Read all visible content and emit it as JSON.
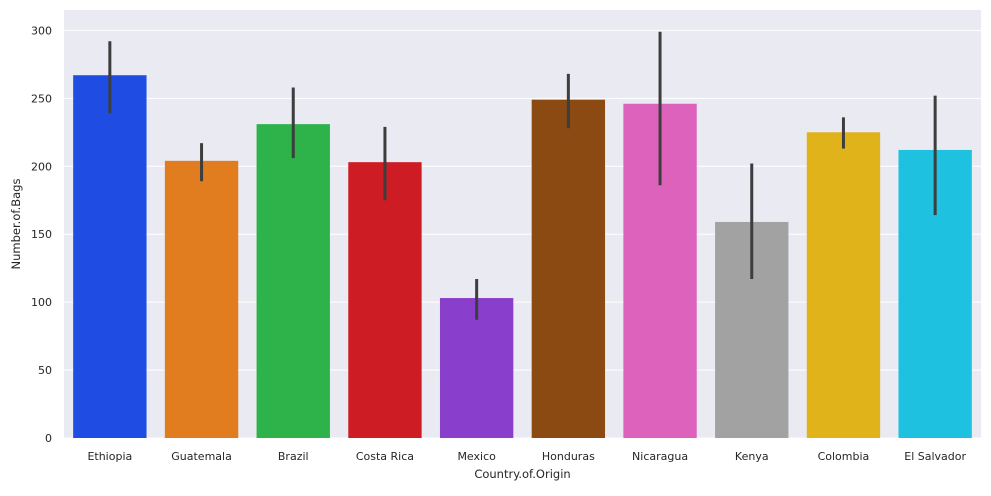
{
  "chart_data": {
    "type": "bar",
    "title": "",
    "xlabel": "Country.of.Origin",
    "ylabel": "Number.of.Bags",
    "categories": [
      "Ethiopia",
      "Guatemala",
      "Brazil",
      "Costa Rica",
      "Mexico",
      "Honduras",
      "Nicaragua",
      "Kenya",
      "Colombia",
      "El Salvador"
    ],
    "values": [
      267,
      204,
      231,
      203,
      103,
      249,
      246,
      159,
      225,
      212
    ],
    "error_bars": [
      [
        239,
        292
      ],
      [
        189,
        217
      ],
      [
        206,
        258
      ],
      [
        175,
        229
      ],
      [
        87,
        117
      ],
      [
        228,
        268
      ],
      [
        186,
        299
      ],
      [
        117,
        202
      ],
      [
        213,
        236
      ],
      [
        164,
        252
      ]
    ],
    "colors": [
      "#1f4de3",
      "#e17c1f",
      "#2db34a",
      "#cd1c24",
      "#8a3ecc",
      "#8b4a12",
      "#dc62bb",
      "#a2a2a2",
      "#e1b31b",
      "#1fc1e1"
    ],
    "ylim": [
      0,
      315
    ],
    "yticks": [
      0,
      50,
      100,
      150,
      200,
      250,
      300
    ],
    "grid": true,
    "background": "#eaeaf2"
  }
}
